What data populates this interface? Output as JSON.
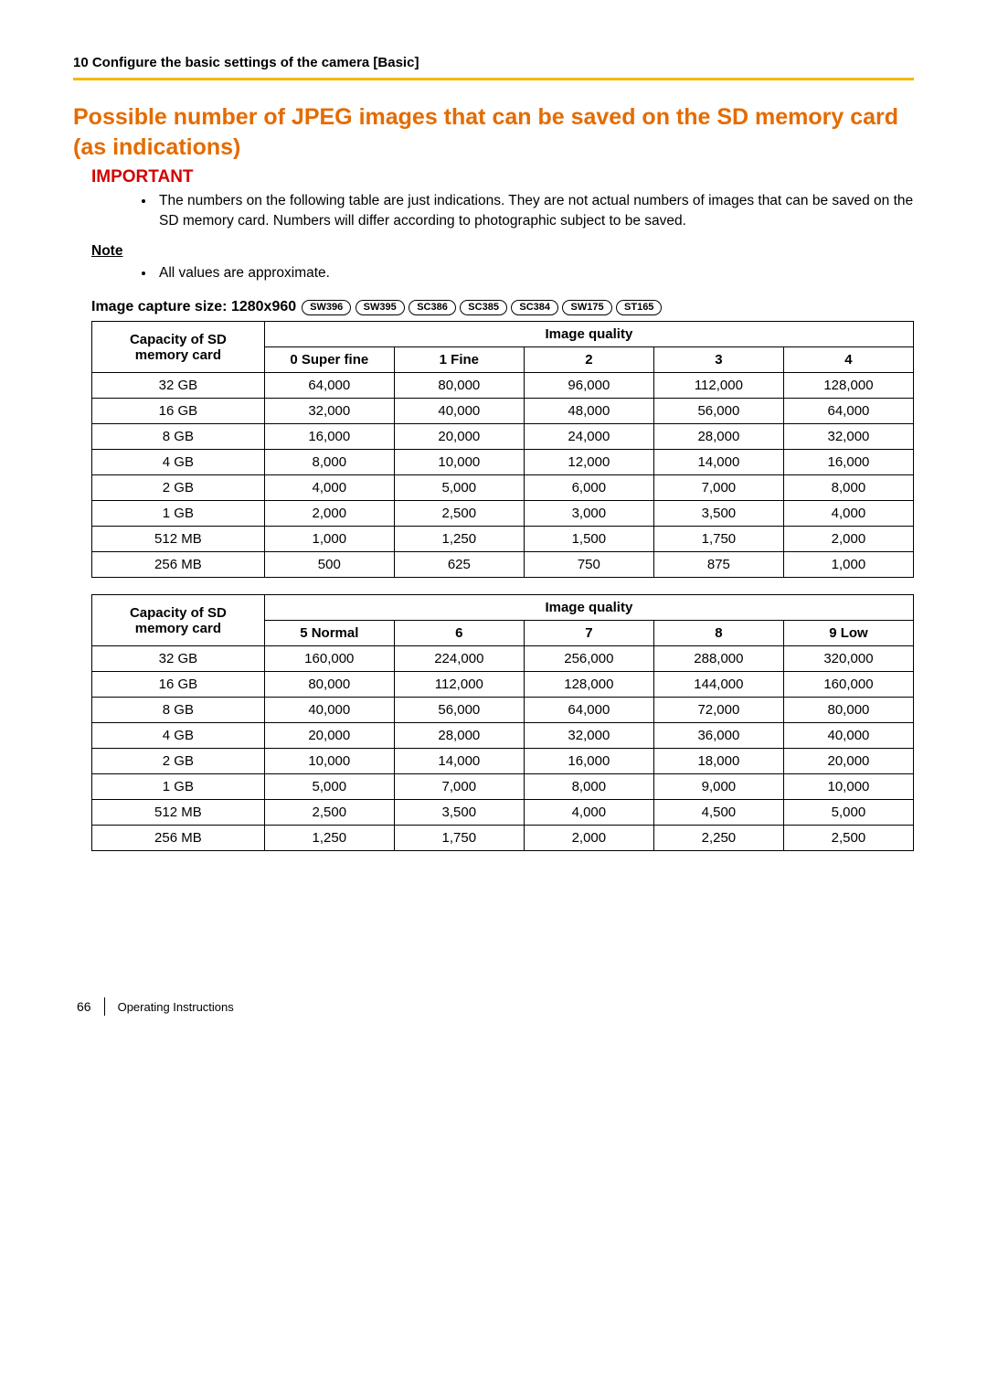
{
  "colors": {
    "rule": "#f5b800",
    "title": "#e46b00",
    "important": "#d40000",
    "text": "#000000",
    "background": "#ffffff"
  },
  "fonts": {
    "body_pt": 11.5,
    "title_pt": 18,
    "badge_pt": 8
  },
  "header": {
    "chapter": "10 Configure the basic settings of the camera [Basic]"
  },
  "title": "Possible number of JPEG images that can be saved on the SD memory card (as indications)",
  "important": {
    "label": "IMPORTANT",
    "items": [
      "The numbers on the following table are just indications. They are not actual numbers of images that can be saved on the SD memory card. Numbers will differ according to photographic subject to be saved."
    ]
  },
  "note": {
    "label": "Note",
    "items": [
      "All values are approximate."
    ]
  },
  "capture": {
    "label": "Image capture size: 1280x960",
    "models": [
      "SW396",
      "SW395",
      "SC386",
      "SC385",
      "SC384",
      "SW175",
      "ST165"
    ]
  },
  "table_common": {
    "row_header": "Capacity of SD memory card",
    "col_group": "Image quality",
    "capacities": [
      "32 GB",
      "16 GB",
      "8 GB",
      "4 GB",
      "2 GB",
      "1 GB",
      "512 MB",
      "256 MB"
    ]
  },
  "table1": {
    "quality_cols": [
      "0 Super fine",
      "1 Fine",
      "2",
      "3",
      "4"
    ],
    "rows": [
      [
        "64,000",
        "80,000",
        "96,000",
        "112,000",
        "128,000"
      ],
      [
        "32,000",
        "40,000",
        "48,000",
        "56,000",
        "64,000"
      ],
      [
        "16,000",
        "20,000",
        "24,000",
        "28,000",
        "32,000"
      ],
      [
        "8,000",
        "10,000",
        "12,000",
        "14,000",
        "16,000"
      ],
      [
        "4,000",
        "5,000",
        "6,000",
        "7,000",
        "8,000"
      ],
      [
        "2,000",
        "2,500",
        "3,000",
        "3,500",
        "4,000"
      ],
      [
        "1,000",
        "1,250",
        "1,500",
        "1,750",
        "2,000"
      ],
      [
        "500",
        "625",
        "750",
        "875",
        "1,000"
      ]
    ]
  },
  "table2": {
    "quality_cols": [
      "5 Normal",
      "6",
      "7",
      "8",
      "9 Low"
    ],
    "rows": [
      [
        "160,000",
        "224,000",
        "256,000",
        "288,000",
        "320,000"
      ],
      [
        "80,000",
        "112,000",
        "128,000",
        "144,000",
        "160,000"
      ],
      [
        "40,000",
        "56,000",
        "64,000",
        "72,000",
        "80,000"
      ],
      [
        "20,000",
        "28,000",
        "32,000",
        "36,000",
        "40,000"
      ],
      [
        "10,000",
        "14,000",
        "16,000",
        "18,000",
        "20,000"
      ],
      [
        "5,000",
        "7,000",
        "8,000",
        "9,000",
        "10,000"
      ],
      [
        "2,500",
        "3,500",
        "4,000",
        "4,500",
        "5,000"
      ],
      [
        "1,250",
        "1,750",
        "2,000",
        "2,250",
        "2,500"
      ]
    ]
  },
  "footer": {
    "page": "66",
    "doc": "Operating Instructions"
  }
}
